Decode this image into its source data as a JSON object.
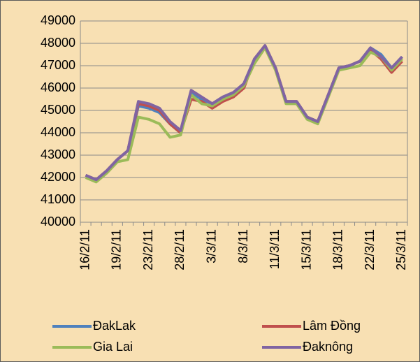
{
  "chart_data": {
    "type": "line",
    "categories": [
      "16/2/11",
      null,
      null,
      "19/2/11",
      null,
      null,
      "23/2/11",
      null,
      null,
      "28/2/11",
      null,
      null,
      "3/3/11",
      null,
      null,
      "8/3/11",
      null,
      null,
      "11/3/11",
      null,
      null,
      "15/3/11",
      null,
      null,
      "18/3/11",
      null,
      null,
      "22/3/11",
      null,
      null,
      "25/3/11"
    ],
    "series": [
      {
        "name": "ĐakLak",
        "color": "#4f81bd",
        "values": [
          42100,
          41900,
          42300,
          42800,
          43200,
          45200,
          45100,
          44900,
          44400,
          44000,
          45800,
          45500,
          45300,
          45600,
          45800,
          46200,
          47300,
          47900,
          46900,
          45400,
          45400,
          44700,
          44500,
          45700,
          46900,
          47000,
          47200,
          47800,
          47500,
          46900,
          47400
        ]
      },
      {
        "name": "Lâm Đồng",
        "color": "#c0504d",
        "values": [
          42100,
          41900,
          42300,
          42800,
          43200,
          45300,
          45200,
          45000,
          44400,
          44000,
          45500,
          45400,
          45100,
          45400,
          45600,
          46000,
          47300,
          47900,
          46900,
          45400,
          45400,
          44700,
          44500,
          45700,
          46900,
          47000,
          47200,
          47700,
          47300,
          46700,
          47200
        ]
      },
      {
        "name": "Gia Lai",
        "color": "#9bbb59",
        "values": [
          42000,
          41800,
          42200,
          42700,
          42800,
          44700,
          44600,
          44400,
          43800,
          43900,
          45700,
          45300,
          45200,
          45500,
          45700,
          46100,
          47100,
          47800,
          46800,
          45300,
          45300,
          44600,
          44400,
          45600,
          46800,
          46900,
          47000,
          47600,
          47400,
          46800,
          47300
        ]
      },
      {
        "name": "Đaknông",
        "color": "#8064a2",
        "values": [
          42100,
          41900,
          42300,
          42800,
          43200,
          45400,
          45300,
          45100,
          44500,
          44100,
          45900,
          45600,
          45300,
          45600,
          45800,
          46200,
          47300,
          47900,
          46900,
          45400,
          45400,
          44700,
          44500,
          45700,
          46900,
          47000,
          47200,
          47800,
          47400,
          46900,
          47400
        ]
      }
    ],
    "ylim": [
      40000,
      49000
    ],
    "yticks": [
      40000,
      41000,
      42000,
      43000,
      44000,
      45000,
      46000,
      47000,
      48000,
      49000
    ],
    "grid": true,
    "legend": "bottom"
  }
}
